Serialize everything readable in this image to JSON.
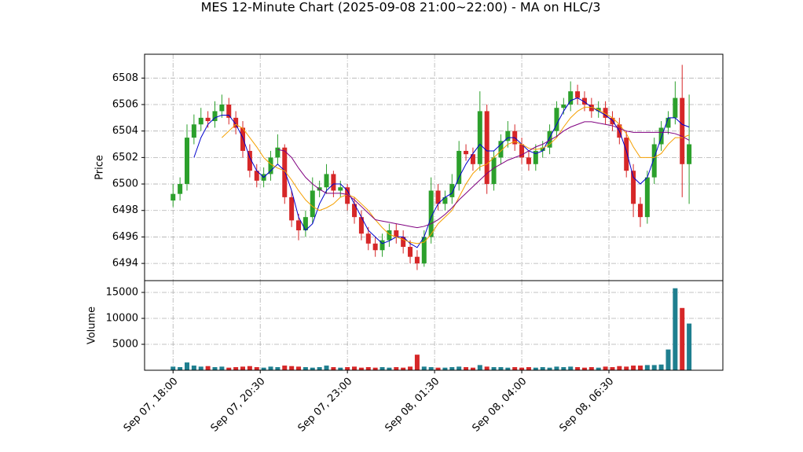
{
  "chart_data": {
    "type": "candlestick",
    "title": "MES 12-Minute Chart (2025-09-08 21:00~22:00) - MA on HLC/3",
    "ylabel": "Price",
    "volume_label": "Volume",
    "x": [
      "Sep 07, 18:00",
      "Sep 07, 18:12",
      "Sep 07, 18:24",
      "Sep 07, 18:36",
      "Sep 07, 18:48",
      "Sep 07, 19:00",
      "Sep 07, 19:12",
      "Sep 07, 19:24",
      "Sep 07, 19:36",
      "Sep 07, 19:48",
      "Sep 07, 20:00",
      "Sep 07, 20:12",
      "Sep 07, 20:24",
      "Sep 07, 20:36",
      "Sep 07, 20:48",
      "Sep 07, 21:00",
      "Sep 07, 21:12",
      "Sep 07, 21:24",
      "Sep 07, 21:36",
      "Sep 07, 21:48",
      "Sep 07, 22:00",
      "Sep 07, 22:12",
      "Sep 07, 22:24",
      "Sep 07, 22:36",
      "Sep 07, 22:48",
      "Sep 07, 23:00",
      "Sep 07, 23:12",
      "Sep 07, 23:24",
      "Sep 07, 23:36",
      "Sep 07, 23:48",
      "Sep 08, 00:00",
      "Sep 08, 00:12",
      "Sep 08, 00:24",
      "Sep 08, 00:36",
      "Sep 08, 00:48",
      "Sep 08, 01:00",
      "Sep 08, 01:12",
      "Sep 08, 01:24",
      "Sep 08, 01:36",
      "Sep 08, 01:48",
      "Sep 08, 02:00",
      "Sep 08, 02:12",
      "Sep 08, 02:24",
      "Sep 08, 02:36",
      "Sep 08, 02:48",
      "Sep 08, 03:00",
      "Sep 08, 03:12",
      "Sep 08, 03:24",
      "Sep 08, 03:36",
      "Sep 08, 03:48",
      "Sep 08, 04:00",
      "Sep 08, 04:12",
      "Sep 08, 04:24",
      "Sep 08, 04:36",
      "Sep 08, 04:48",
      "Sep 08, 05:00",
      "Sep 08, 05:12",
      "Sep 08, 05:24",
      "Sep 08, 05:36",
      "Sep 08, 05:48",
      "Sep 08, 06:00",
      "Sep 08, 06:12",
      "Sep 08, 06:24",
      "Sep 08, 06:36",
      "Sep 08, 06:48",
      "Sep 08, 07:00",
      "Sep 08, 07:12",
      "Sep 08, 07:24",
      "Sep 08, 07:36",
      "Sep 08, 07:48",
      "Sep 08, 08:00",
      "Sep 08, 08:12",
      "Sep 08, 08:24",
      "Sep 08, 08:36",
      "Sep 08, 08:48"
    ],
    "open": [
      6498.75,
      6499.25,
      6500,
      6503.5,
      6504.5,
      6505,
      6504.75,
      6505.5,
      6506,
      6505,
      6504.25,
      6502.5,
      6501,
      6500.25,
      6500.75,
      6502,
      6502.75,
      6499,
      6497.25,
      6496.5,
      6497.5,
      6499.5,
      6499.75,
      6500.75,
      6499.5,
      6499.75,
      6498.5,
      6497.5,
      6496.25,
      6495.5,
      6495,
      6495.75,
      6496.5,
      6496,
      6495.25,
      6494.5,
      6494,
      6496,
      6499.5,
      6498.5,
      6499,
      6500,
      6502.5,
      6502.25,
      6501.5,
      6505.5,
      6500,
      6502,
      6503.25,
      6504,
      6503,
      6502,
      6501.5,
      6502.5,
      6502.75,
      6504,
      6505.75,
      6506,
      6507,
      6506.5,
      6506,
      6505.5,
      6505.75,
      6505,
      6504.5,
      6503.5,
      6501,
      6498.5,
      6497.5,
      6500.5,
      6503,
      6504.25,
      6505,
      6506.5,
      6501.5
    ],
    "high": [
      6500,
      6500.5,
      6504.5,
      6505.25,
      6505.75,
      6505.5,
      6506.25,
      6506.75,
      6506.5,
      6505.5,
      6504.75,
      6503,
      6501.5,
      6501.25,
      6502.5,
      6503.75,
      6503,
      6499.5,
      6497.75,
      6498,
      6500.5,
      6500.25,
      6501.5,
      6501,
      6500.25,
      6500,
      6499,
      6498,
      6496.75,
      6496,
      6496.25,
      6497,
      6497,
      6496.5,
      6495.75,
      6495,
      6496.5,
      6500.5,
      6500,
      6499.5,
      6500.75,
      6503.25,
      6503,
      6502.75,
      6507,
      6506,
      6502.5,
      6503.75,
      6504.75,
      6504.5,
      6503.5,
      6502.5,
      6503,
      6503.25,
      6504.5,
      6506.25,
      6506.5,
      6507.75,
      6507.5,
      6507,
      6506.5,
      6506.25,
      6506.25,
      6505.5,
      6505,
      6504,
      6501.5,
      6499,
      6501,
      6503.5,
      6504.75,
      6505.5,
      6507.75,
      6509,
      6506.75
    ],
    "low": [
      6498.25,
      6498.75,
      6499.5,
      6503,
      6504,
      6504.25,
      6504.25,
      6505,
      6504.5,
      6503.75,
      6502,
      6500.5,
      6499.75,
      6499.75,
      6500.25,
      6501.5,
      6498.5,
      6496.75,
      6495.75,
      6496,
      6497,
      6499,
      6499.25,
      6499,
      6499,
      6498,
      6497,
      6495.75,
      6495,
      6494.5,
      6494.5,
      6495.25,
      6495.5,
      6494.75,
      6494,
      6493.5,
      6493.75,
      6495.5,
      6498,
      6498,
      6498.5,
      6499.5,
      6501.75,
      6501,
      6501,
      6499.25,
      6499.5,
      6501.5,
      6502.75,
      6502.5,
      6501.5,
      6501,
      6501,
      6502,
      6502.25,
      6503.5,
      6505.25,
      6505.5,
      6506,
      6505.5,
      6505,
      6505,
      6504.5,
      6504,
      6503,
      6500.5,
      6497.5,
      6496.75,
      6497,
      6500,
      6502.5,
      6503.75,
      6504.5,
      6499,
      6498.5
    ],
    "close": [
      6499.25,
      6500,
      6503.5,
      6504.5,
      6505,
      6504.75,
      6505.5,
      6506,
      6505,
      6504.25,
      6502.5,
      6501,
      6500.25,
      6500.75,
      6502,
      6502.75,
      6499,
      6497.25,
      6496.5,
      6497.5,
      6499.5,
      6499.75,
      6500.75,
      6499.5,
      6499.75,
      6498.5,
      6497.5,
      6496.25,
      6495.5,
      6495,
      6495.75,
      6496.5,
      6496,
      6495.25,
      6494.5,
      6494,
      6496,
      6499.5,
      6498.5,
      6499,
      6500,
      6502.5,
      6502.25,
      6501.5,
      6505.5,
      6500,
      6502,
      6503.25,
      6504,
      6503,
      6502,
      6501.5,
      6502.5,
      6502.75,
      6504,
      6505.75,
      6506,
      6507,
      6506.5,
      6506,
      6505.5,
      6505.75,
      6505,
      6504.5,
      6503.5,
      6501,
      6498.5,
      6497.5,
      6500.5,
      6503,
      6504.25,
      6505,
      6506.5,
      6501.5,
      6503
    ],
    "volume": [
      700,
      600,
      1500,
      900,
      700,
      800,
      600,
      700,
      500,
      600,
      700,
      800,
      600,
      500,
      700,
      600,
      900,
      800,
      700,
      600,
      500,
      600,
      900,
      600,
      500,
      600,
      700,
      500,
      600,
      500,
      600,
      500,
      600,
      500,
      700,
      3000,
      700,
      600,
      500,
      500,
      600,
      700,
      600,
      500,
      1000,
      700,
      600,
      600,
      500,
      600,
      500,
      600,
      500,
      600,
      500,
      700,
      600,
      700,
      600,
      500,
      600,
      500,
      700,
      600,
      800,
      700,
      900,
      900,
      1000,
      1000,
      1100,
      4000,
      15800,
      12000,
      9000
    ],
    "up_color": "#2ca02c",
    "down_color": "#d62728",
    "volume_up_color": "#1f7f8f",
    "volume_down_color": "#d62728",
    "series": [
      {
        "color": "#0000cc",
        "values": [
          null,
          null,
          null,
          6502,
          6503.5,
          6504.5,
          6505,
          6505.2,
          6505.2,
          6504.5,
          6503.5,
          6502,
          6501,
          6500.5,
          6501,
          6501.5,
          6501,
          6499.5,
          6497.5,
          6496.5,
          6497,
          6498.5,
          6499.5,
          6500,
          6500,
          6499.5,
          6498.5,
          6497.5,
          6496.5,
          6496,
          6495.5,
          6495.7,
          6496,
          6496,
          6495.5,
          6495.2,
          6496,
          6497.5,
          6498.5,
          6499,
          6499.3,
          6500.5,
          6501.5,
          6502.3,
          6503,
          6502.5,
          6502.5,
          6503,
          6503.5,
          6503.5,
          6503,
          6502.5,
          6502.3,
          6502.5,
          6503.5,
          6504.5,
          6505.5,
          6506.3,
          6506.5,
          6506.2,
          6505.8,
          6505.5,
          6505.2,
          6504.8,
          6504,
          6502.5,
          6500.5,
          6500,
          6500.5,
          6502,
          6503.5,
          6505,
          6505,
          6504.5,
          6504.3
        ]
      },
      {
        "color": "#f5a000",
        "values": [
          null,
          null,
          null,
          null,
          null,
          null,
          null,
          6503.5,
          6504,
          6504.5,
          6504.2,
          6503.5,
          6502.8,
          6502,
          6501.5,
          6501.2,
          6501,
          6500.3,
          6499.5,
          6498.8,
          6498.3,
          6498,
          6498.2,
          6498.5,
          6499,
          6499.2,
          6499,
          6498.5,
          6498,
          6497.3,
          6496.7,
          6496.2,
          6496,
          6495.8,
          6495.6,
          6495.5,
          6495.6,
          6496.2,
          6497,
          6497.5,
          6498,
          6499,
          6500,
          6500.8,
          6501.3,
          6501.5,
          6502,
          6502.5,
          6503,
          6503.2,
          6503,
          6502.7,
          6502.6,
          6502.7,
          6503,
          6503.5,
          6504.3,
          6505,
          6505.5,
          6505.8,
          6505.8,
          6505.6,
          6505.3,
          6505,
          6504.5,
          6503.8,
          6502.8,
          6502,
          6502,
          6502,
          6502.3,
          6503,
          6503.5,
          6503.5,
          6503.7
        ]
      },
      {
        "color": "#800080",
        "values": [
          null,
          null,
          null,
          null,
          null,
          null,
          null,
          null,
          null,
          null,
          null,
          null,
          null,
          null,
          null,
          6502.6,
          6502.5,
          6502,
          6501.2,
          6500.5,
          6500,
          6499.6,
          6499.3,
          6499.3,
          6499.3,
          6499.2,
          6498.8,
          6498.3,
          6497.8,
          6497.3,
          6497.2,
          6497.1,
          6497,
          6496.9,
          6496.8,
          6496.7,
          6496.8,
          6497,
          6497.3,
          6497.7,
          6498.2,
          6498.8,
          6499.3,
          6499.8,
          6500.3,
          6500.8,
          6501.2,
          6501.5,
          6501.8,
          6502,
          6502.2,
          6502.5,
          6502.8,
          6503,
          6503.3,
          6503.6,
          6504,
          6504.3,
          6504.5,
          6504.7,
          6504.7,
          6504.6,
          6504.5,
          6504.4,
          6504.2,
          6504,
          6503.9,
          6503.9,
          6503.9,
          6503.9,
          6503.9,
          6503.9,
          6503.8,
          6503.6,
          6503.3
        ]
      }
    ],
    "xlim": [
      "Sep 07, 17:11",
      "Sep 08, 09:46"
    ],
    "xticks": [
      "Sep 07, 18:00",
      "Sep 07, 20:30",
      "Sep 07, 23:00",
      "Sep 08, 01:30",
      "Sep 08, 04:00",
      "Sep 08, 06:30"
    ],
    "ylim": [
      6492.7,
      6509.8
    ],
    "yticks": [
      6494,
      6496,
      6498,
      6500,
      6502,
      6504,
      6506,
      6508
    ],
    "volume_ylim": [
      0,
      17270
    ],
    "volume_yticks": [
      5000,
      10000,
      15000
    ],
    "grid": true
  }
}
